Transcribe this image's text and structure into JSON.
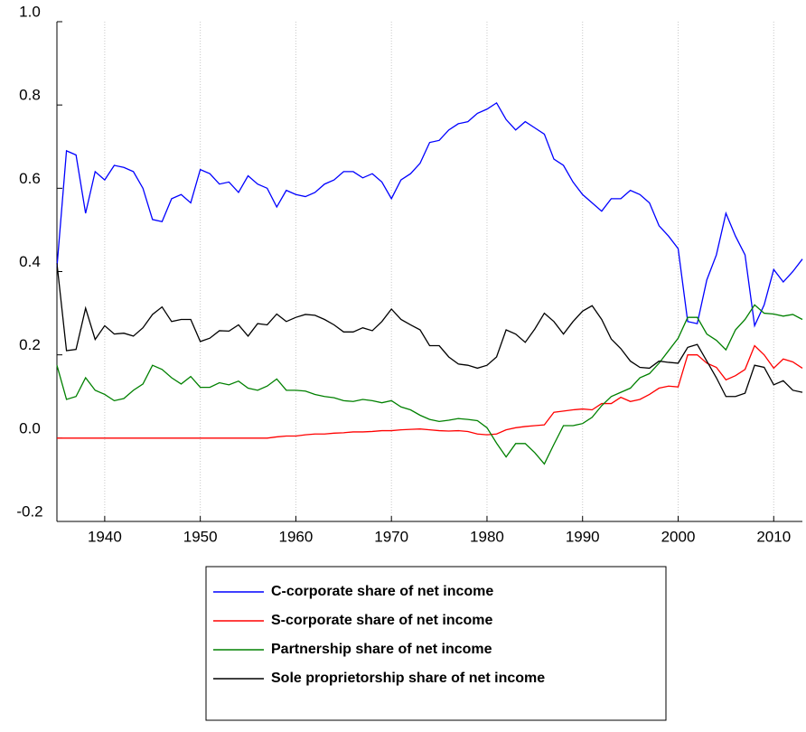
{
  "chart_data": {
    "type": "line",
    "x": [
      1935,
      1936,
      1937,
      1938,
      1939,
      1940,
      1941,
      1942,
      1943,
      1944,
      1945,
      1946,
      1947,
      1948,
      1949,
      1950,
      1951,
      1952,
      1953,
      1954,
      1955,
      1956,
      1957,
      1958,
      1959,
      1960,
      1961,
      1962,
      1963,
      1964,
      1965,
      1966,
      1967,
      1968,
      1969,
      1970,
      1971,
      1972,
      1973,
      1974,
      1975,
      1976,
      1977,
      1978,
      1979,
      1980,
      1981,
      1982,
      1983,
      1984,
      1985,
      1986,
      1987,
      1988,
      1989,
      1990,
      1991,
      1992,
      1993,
      1994,
      1995,
      1996,
      1997,
      1998,
      1999,
      2000,
      2001,
      2002,
      2003,
      2004,
      2005,
      2006,
      2007,
      2008,
      2009,
      2010,
      2011,
      2012,
      2013
    ],
    "xlim": [
      1935,
      2013
    ],
    "xticks": [
      1940,
      1950,
      1960,
      1970,
      1980,
      1990,
      2000,
      2010
    ],
    "ylim": [
      -0.2,
      1.0
    ],
    "yticks": [
      -0.2,
      {
        "value": 0,
        "label": "0.0"
      },
      0.2,
      0.4,
      0.6,
      0.8,
      {
        "value": 1,
        "label": "1.0"
      }
    ],
    "grid": "x",
    "series": [
      {
        "name": "C-corporate share of net income",
        "color": "#0000ff",
        "values": [
          0.41,
          0.69,
          0.68,
          0.54,
          0.64,
          0.62,
          0.655,
          0.65,
          0.64,
          0.6,
          0.525,
          0.52,
          0.575,
          0.585,
          0.565,
          0.645,
          0.635,
          0.61,
          0.615,
          0.59,
          0.63,
          0.61,
          0.6,
          0.555,
          0.595,
          0.585,
          0.58,
          0.59,
          0.61,
          0.62,
          0.64,
          0.64,
          0.625,
          0.635,
          0.615,
          0.575,
          0.62,
          0.635,
          0.66,
          0.71,
          0.715,
          0.74,
          0.755,
          0.76,
          0.78,
          0.79,
          0.805,
          0.765,
          0.74,
          0.76,
          0.745,
          0.73,
          0.67,
          0.655,
          0.615,
          0.585,
          0.565,
          0.545,
          0.575,
          0.575,
          0.595,
          0.585,
          0.565,
          0.51,
          0.485,
          0.455,
          0.28,
          0.275,
          0.38,
          0.44,
          0.54,
          0.485,
          0.44,
          0.27,
          0.32,
          0.405,
          0.375,
          0.4,
          0.43
        ]
      },
      {
        "name": "S-corporate share of net income",
        "color": "#ff0000",
        "values": [
          0,
          0,
          0,
          0,
          0,
          0,
          0,
          0,
          0,
          0,
          0,
          0,
          0,
          0,
          0,
          0,
          0,
          0,
          0,
          0,
          0,
          0,
          0,
          0.003,
          0.005,
          0.005,
          0.008,
          0.01,
          0.01,
          0.012,
          0.013,
          0.015,
          0.015,
          0.016,
          0.018,
          0.018,
          0.02,
          0.021,
          0.022,
          0.02,
          0.018,
          0.017,
          0.018,
          0.016,
          0.01,
          0.008,
          0.01,
          0.02,
          0.025,
          0.028,
          0.03,
          0.032,
          0.062,
          0.065,
          0.068,
          0.07,
          0.068,
          0.083,
          0.083,
          0.098,
          0.088,
          0.093,
          0.105,
          0.12,
          0.125,
          0.123,
          0.2,
          0.2,
          0.18,
          0.17,
          0.14,
          0.15,
          0.165,
          0.222,
          0.2,
          0.168,
          0.19,
          0.183,
          0.168
        ]
      },
      {
        "name": "Partnership share of net income",
        "color": "#008000",
        "values": [
          0.175,
          0.093,
          0.1,
          0.145,
          0.115,
          0.105,
          0.09,
          0.095,
          0.115,
          0.13,
          0.175,
          0.165,
          0.145,
          0.13,
          0.148,
          0.122,
          0.122,
          0.133,
          0.128,
          0.137,
          0.12,
          0.115,
          0.125,
          0.142,
          0.115,
          0.115,
          0.113,
          0.105,
          0.1,
          0.097,
          0.09,
          0.088,
          0.093,
          0.09,
          0.085,
          0.09,
          0.075,
          0.068,
          0.055,
          0.045,
          0.04,
          0.043,
          0.047,
          0.045,
          0.042,
          0.025,
          -0.012,
          -0.045,
          -0.013,
          -0.013,
          -0.035,
          -0.062,
          -0.015,
          0.03,
          0.03,
          0.035,
          0.05,
          0.078,
          0.1,
          0.11,
          0.12,
          0.145,
          0.155,
          0.18,
          0.21,
          0.24,
          0.29,
          0.29,
          0.25,
          0.235,
          0.212,
          0.26,
          0.285,
          0.32,
          0.3,
          0.298,
          0.293,
          0.297,
          0.285
        ]
      },
      {
        "name": "Sole proprietorship share of net income",
        "color": "#000000",
        "values": [
          0.42,
          0.21,
          0.213,
          0.312,
          0.237,
          0.27,
          0.25,
          0.252,
          0.245,
          0.265,
          0.297,
          0.315,
          0.28,
          0.285,
          0.285,
          0.232,
          0.24,
          0.258,
          0.257,
          0.272,
          0.245,
          0.275,
          0.272,
          0.298,
          0.28,
          0.29,
          0.297,
          0.295,
          0.285,
          0.272,
          0.255,
          0.255,
          0.265,
          0.258,
          0.28,
          0.31,
          0.285,
          0.272,
          0.26,
          0.222,
          0.222,
          0.195,
          0.178,
          0.175,
          0.168,
          0.175,
          0.195,
          0.26,
          0.25,
          0.23,
          0.262,
          0.3,
          0.28,
          0.25,
          0.28,
          0.305,
          0.318,
          0.285,
          0.238,
          0.215,
          0.185,
          0.17,
          0.168,
          0.185,
          0.182,
          0.18,
          0.218,
          0.225,
          0.185,
          0.145,
          0.1,
          0.1,
          0.108,
          0.175,
          0.17,
          0.128,
          0.138,
          0.115,
          0.11
        ]
      }
    ]
  }
}
